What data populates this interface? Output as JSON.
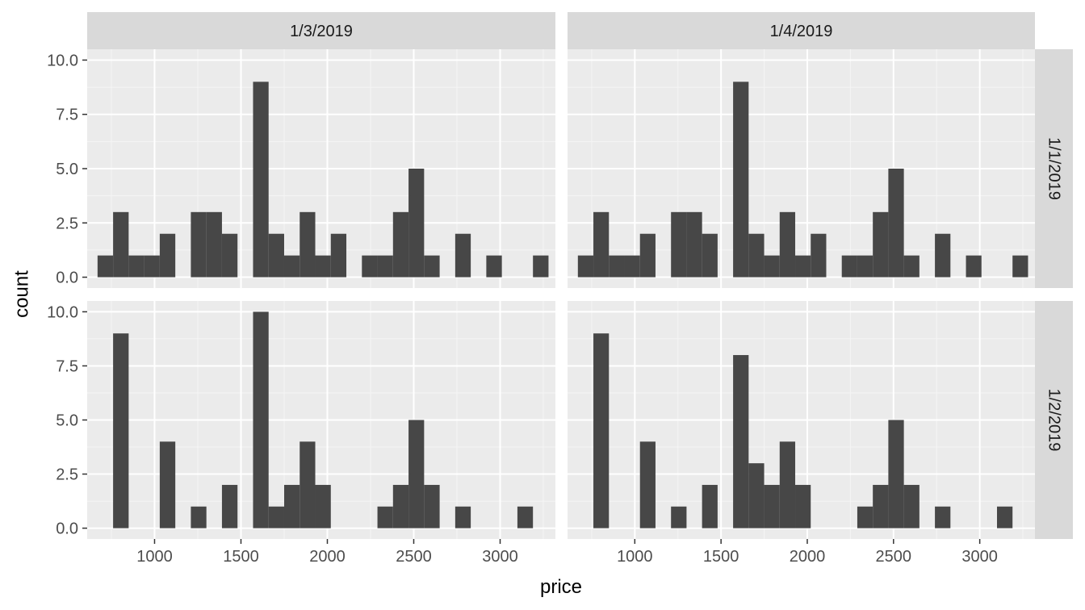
{
  "chart_data": {
    "type": "bar",
    "layout": "facet_grid",
    "xlabel": "price",
    "ylabel": "count",
    "xlim": [
      610,
      3320
    ],
    "ylim": [
      -0.5,
      10.5
    ],
    "x_ticks": [
      1000,
      1500,
      2000,
      2500,
      3000
    ],
    "x_tick_labels": [
      "1000",
      "1500",
      "2000",
      "2500",
      "3000"
    ],
    "y_ticks": [
      0,
      2.5,
      5,
      7.5,
      10
    ],
    "y_tick_labels": [
      "0.0",
      "2.5",
      "5.0",
      "7.5",
      "10.0"
    ],
    "bin_width": 90,
    "bin_starts": [
      670,
      760,
      850,
      940,
      1030,
      1120,
      1210,
      1300,
      1390,
      1480,
      1570,
      1660,
      1750,
      1840,
      1930,
      2020,
      2110,
      2200,
      2290,
      2380,
      2470,
      2560,
      2650,
      2740,
      2830,
      2920,
      3010,
      3100,
      3190
    ],
    "column_labels": [
      "1/3/2019",
      "1/4/2019"
    ],
    "row_labels": [
      "1/1/2019",
      "1/2/2019"
    ],
    "grid": true,
    "panels": [
      {
        "row": 0,
        "col": 0,
        "counts": [
          1,
          3,
          1,
          1,
          2,
          0,
          3,
          3,
          2,
          0,
          9,
          2,
          1,
          3,
          1,
          2,
          0,
          1,
          1,
          3,
          5,
          1,
          0,
          2,
          0,
          1,
          0,
          0,
          1
        ]
      },
      {
        "row": 0,
        "col": 1,
        "counts": [
          1,
          3,
          1,
          1,
          2,
          0,
          3,
          3,
          2,
          0,
          9,
          2,
          1,
          3,
          1,
          2,
          0,
          1,
          1,
          3,
          5,
          1,
          0,
          2,
          0,
          1,
          0,
          0,
          1
        ]
      },
      {
        "row": 1,
        "col": 0,
        "counts": [
          0,
          9,
          0,
          0,
          4,
          0,
          1,
          0,
          2,
          0,
          10,
          1,
          2,
          4,
          2,
          0,
          0,
          0,
          1,
          2,
          5,
          2,
          0,
          1,
          0,
          0,
          0,
          1,
          0
        ]
      },
      {
        "row": 1,
        "col": 1,
        "counts": [
          0,
          9,
          0,
          0,
          4,
          0,
          1,
          0,
          2,
          0,
          8,
          3,
          2,
          4,
          2,
          0,
          0,
          0,
          1,
          2,
          5,
          2,
          0,
          1,
          0,
          0,
          0,
          1,
          0
        ]
      }
    ],
    "colors": {
      "bar": "#474747",
      "panel_bg": "#ebebeb",
      "grid_major": "#ffffff",
      "grid_minor": "#f5f5f5",
      "strip_bg": "#d9d9d9",
      "tick": "#4d4d4d"
    }
  }
}
